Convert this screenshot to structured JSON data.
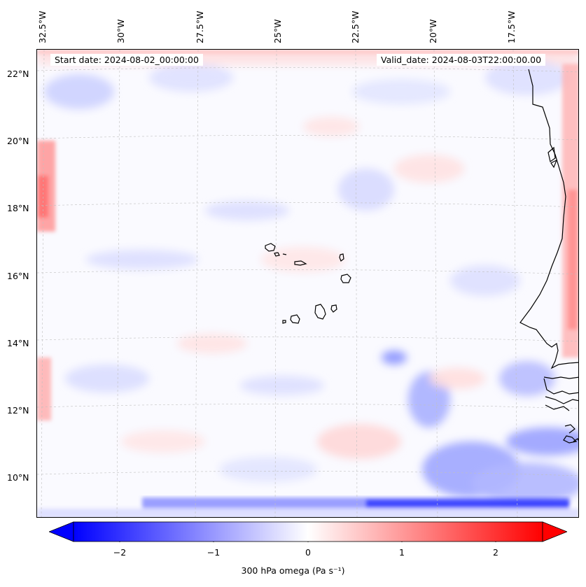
{
  "map": {
    "start_date": "Start date: 2024-08-02_00:00:00",
    "valid_date": "Valid_date: 2024-08-03T22:00:00.00",
    "lon_labels": [
      "32.5°W",
      "30°W",
      "27.5°W",
      "25°W",
      "22.5°W",
      "20°W",
      "17.5°W"
    ],
    "lat_labels": [
      "22°N",
      "20°N",
      "18°N",
      "16°N",
      "14°N",
      "12°N",
      "10°N"
    ],
    "region": "Cape Verde Islands and West African coast",
    "field": "300 hPa vertical velocity (omega)"
  },
  "colorbar": {
    "title": "300 hPa omega (Pa s⁻¹)",
    "ticks": [
      "−2",
      "−1",
      "0",
      "1",
      "2"
    ],
    "min_color": "#0000ff",
    "mid_color": "#ffffff",
    "max_color": "#ff0000",
    "extend": "both"
  }
}
